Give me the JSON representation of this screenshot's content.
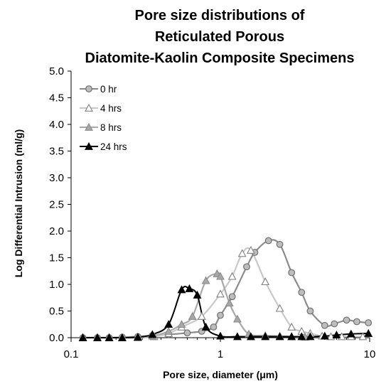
{
  "chart_data": {
    "type": "line",
    "title_lines": [
      "Pore size distributions of",
      "Reticulated Porous",
      "Diatomite-Kaolin Composite Specimens"
    ],
    "xlabel": "Pore size, diameter (μm)",
    "ylabel": "Log Differential Intrusion (ml/g)",
    "x_scale": "log",
    "xlim": [
      0.1,
      10
    ],
    "ylim": [
      0,
      5
    ],
    "x_ticks": [
      {
        "value": 0.1,
        "label": "0.1"
      },
      {
        "value": 1,
        "label": "1"
      },
      {
        "value": 10,
        "label": "10"
      }
    ],
    "y_ticks": [
      {
        "value": 0,
        "label": "0.0"
      },
      {
        "value": 0.5,
        "label": "0.5"
      },
      {
        "value": 1,
        "label": "1.0"
      },
      {
        "value": 1.5,
        "label": "1.5"
      },
      {
        "value": 2,
        "label": "2.0"
      },
      {
        "value": 2.5,
        "label": "2.5"
      },
      {
        "value": 3,
        "label": "3.0"
      },
      {
        "value": 3.5,
        "label": "3.5"
      },
      {
        "value": 4,
        "label": "4.0"
      },
      {
        "value": 4.5,
        "label": "4.5"
      },
      {
        "value": 5,
        "label": "5.0"
      }
    ],
    "grid": false,
    "legend_position": "top-left",
    "series": [
      {
        "name": "0 hr",
        "marker": "circle",
        "line_color": "#8c8c8c",
        "marker_fill": "#bdbdbd",
        "marker_stroke": "#6f6f6f",
        "points": [
          [
            0.12,
            0.0
          ],
          [
            0.15,
            0.0
          ],
          [
            0.18,
            0.0
          ],
          [
            0.22,
            0.01
          ],
          [
            0.28,
            0.02
          ],
          [
            0.35,
            0.04
          ],
          [
            0.45,
            0.06
          ],
          [
            0.6,
            0.09
          ],
          [
            0.75,
            0.12
          ],
          [
            0.9,
            0.2
          ],
          [
            1.0,
            0.42
          ],
          [
            1.2,
            0.77
          ],
          [
            1.5,
            1.33
          ],
          [
            1.7,
            1.6
          ],
          [
            2.1,
            1.82
          ],
          [
            2.5,
            1.75
          ],
          [
            3.0,
            1.22
          ],
          [
            3.5,
            0.85
          ],
          [
            4.0,
            0.5
          ],
          [
            5.0,
            0.23
          ],
          [
            5.8,
            0.26
          ],
          [
            7.0,
            0.33
          ],
          [
            8.2,
            0.3
          ],
          [
            9.8,
            0.28
          ]
        ]
      },
      {
        "name": "4 hrs",
        "marker": "triangle-open",
        "line_color": "#c8c8c8",
        "marker_fill": "#ffffff",
        "marker_stroke": "#808080",
        "points": [
          [
            0.12,
            0.0
          ],
          [
            0.15,
            0.0
          ],
          [
            0.18,
            0.0
          ],
          [
            0.22,
            0.0
          ],
          [
            0.28,
            0.0
          ],
          [
            0.36,
            0.02
          ],
          [
            0.45,
            0.08
          ],
          [
            0.55,
            0.2
          ],
          [
            0.75,
            0.4
          ],
          [
            1.0,
            0.82
          ],
          [
            1.2,
            1.15
          ],
          [
            1.4,
            1.58
          ],
          [
            1.6,
            1.64
          ],
          [
            2.0,
            1.05
          ],
          [
            2.5,
            0.55
          ],
          [
            3.0,
            0.2
          ],
          [
            3.5,
            0.12
          ],
          [
            4.0,
            0.08
          ],
          [
            4.8,
            0.03
          ],
          [
            5.5,
            0.02
          ],
          [
            6.5,
            0.02
          ],
          [
            7.5,
            0.02
          ],
          [
            9.0,
            0.02
          ]
        ]
      },
      {
        "name": "8 hrs",
        "marker": "triangle-filled",
        "line_color": "#a8a8a8",
        "marker_fill": "#a8a8a8",
        "marker_stroke": "#8a8a8a",
        "points": [
          [
            0.12,
            0.0
          ],
          [
            0.15,
            0.0
          ],
          [
            0.18,
            0.0
          ],
          [
            0.22,
            0.0
          ],
          [
            0.28,
            0.0
          ],
          [
            0.35,
            0.03
          ],
          [
            0.45,
            0.12
          ],
          [
            0.55,
            0.25
          ],
          [
            0.65,
            0.4
          ],
          [
            0.8,
            1.07
          ],
          [
            0.95,
            1.2
          ],
          [
            1.0,
            1.15
          ],
          [
            1.15,
            0.65
          ],
          [
            1.3,
            0.35
          ],
          [
            1.55,
            0.07
          ],
          [
            2.0,
            0.04
          ],
          [
            2.5,
            0.03
          ],
          [
            3.0,
            0.02
          ],
          [
            3.7,
            0.01
          ]
        ]
      },
      {
        "name": "24 hrs",
        "marker": "triangle-filled",
        "line_color": "#000000",
        "marker_fill": "#000000",
        "marker_stroke": "#000000",
        "points": [
          [
            0.12,
            0.0
          ],
          [
            0.15,
            0.0
          ],
          [
            0.18,
            0.0
          ],
          [
            0.22,
            0.0
          ],
          [
            0.28,
            0.01
          ],
          [
            0.35,
            0.06
          ],
          [
            0.45,
            0.25
          ],
          [
            0.55,
            0.9
          ],
          [
            0.62,
            0.92
          ],
          [
            0.7,
            0.8
          ],
          [
            0.8,
            0.2
          ],
          [
            1.0,
            0.03
          ],
          [
            1.3,
            0.02
          ],
          [
            1.6,
            0.02
          ],
          [
            2.0,
            0.02
          ],
          [
            2.5,
            0.02
          ],
          [
            3.0,
            0.02
          ],
          [
            3.5,
            0.02
          ],
          [
            4.0,
            0.02
          ],
          [
            5.0,
            0.03
          ],
          [
            6.0,
            0.05
          ],
          [
            7.5,
            0.07
          ],
          [
            9.8,
            0.08
          ]
        ]
      }
    ]
  }
}
